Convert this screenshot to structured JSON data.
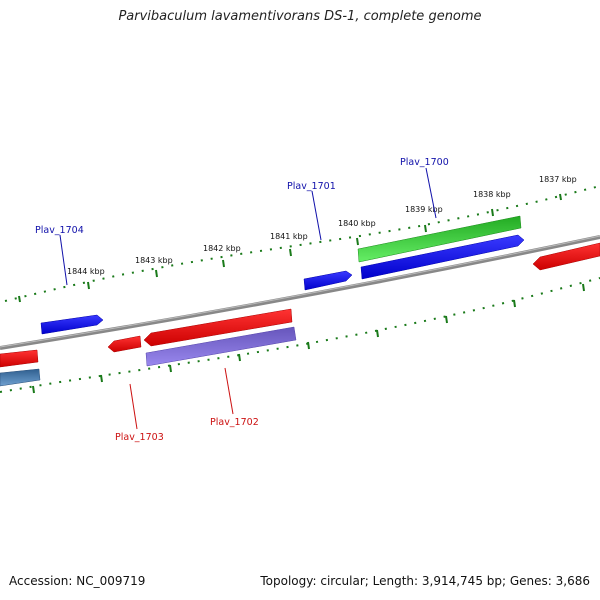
{
  "title": "Parvibaculum lavamentivorans DS-1, complete genome",
  "footer": {
    "accession": "Accession: NC_009719",
    "summary": "Topology: circular; Length: 3,914,745 bp; Genes: 3,686"
  },
  "colors": {
    "backbone": "#888888",
    "tick": "#1a7a1a",
    "forward_gene": "#1a1aff",
    "reverse_gene": "#ff1a1a",
    "feature_green": "#33cc33",
    "feature_purple": "#7766cc",
    "feature_steel": "#4682b4",
    "label_blue": "#1111aa",
    "label_red": "#cc1111"
  },
  "kbp_labels": [
    "1837 kbp",
    "1838 kbp",
    "1839 kbp",
    "1840 kbp",
    "1841 kbp",
    "1842 kbp",
    "1843 kbp",
    "1844 kbp"
  ],
  "gene_labels": [
    {
      "text": "Plav_1700",
      "strand": "forward"
    },
    {
      "text": "Plav_1701",
      "strand": "forward"
    },
    {
      "text": "Plav_1704",
      "strand": "forward"
    },
    {
      "text": "Plav_1703",
      "strand": "reverse"
    },
    {
      "text": "Plav_1702",
      "strand": "reverse"
    }
  ]
}
